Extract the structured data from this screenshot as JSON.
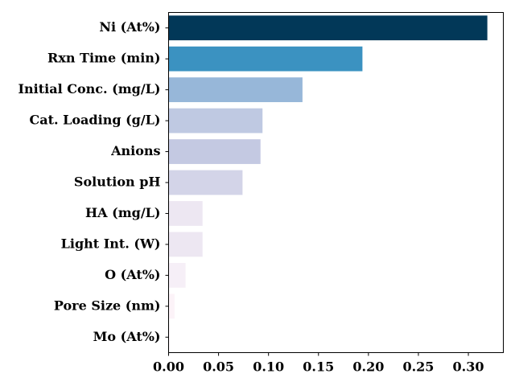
{
  "chart_data": {
    "type": "bar",
    "orientation": "horizontal",
    "title": "",
    "xlabel": "",
    "ylabel": "",
    "categories": [
      "Ni (At%)",
      "Rxn Time (min)",
      "Initial Conc. (mg/L)",
      "Cat. Loading (g/L)",
      "Anions",
      "Solution pH",
      "HA (mg/L)",
      "Light Int. (W)",
      "O (At%)",
      "Pore Size (nm)",
      "Mo (At%)"
    ],
    "values": [
      0.319,
      0.194,
      0.134,
      0.094,
      0.092,
      0.074,
      0.034,
      0.034,
      0.017,
      0.006,
      0.001
    ],
    "colors": [
      "#023858",
      "#3b92c1",
      "#97b7d9",
      "#bfc9e2",
      "#c4c9e2",
      "#d3d4e8",
      "#ede7f2",
      "#ede7f2",
      "#f6eff7",
      "#fcf3f8",
      "#fff7fb"
    ],
    "xlim": [
      0,
      0.335
    ],
    "xticks": [
      "0.00",
      "0.05",
      "0.10",
      "0.15",
      "0.20",
      "0.25",
      "0.30"
    ],
    "grid": false,
    "legend": "none"
  }
}
